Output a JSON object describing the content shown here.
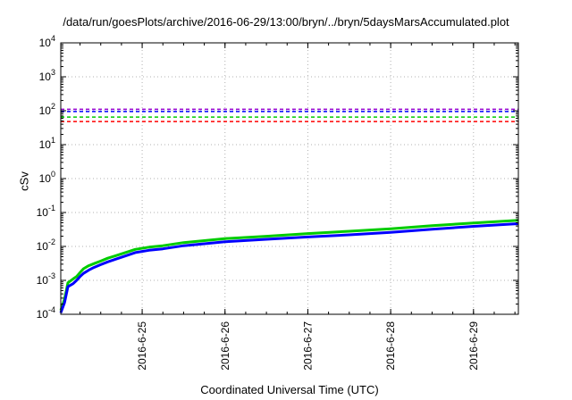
{
  "chart_data": {
    "type": "line",
    "title": "/data/run/goesPlots/archive/2016-06-29/13:00/bryn/../bryn/5daysMarsAccumulated.plot",
    "xlabel": "Coordinated Universal Time (UTC)",
    "ylabel": "cSv",
    "x_ticks": [
      "2016-6-25",
      "2016-6-26",
      "2016-6-27",
      "2016-6-28",
      "2016-6-29"
    ],
    "y_scale": "log",
    "ylim": [
      0.0001,
      10000
    ],
    "y_ticks": [
      {
        "base": "10",
        "exp": "-4"
      },
      {
        "base": "10",
        "exp": "-3"
      },
      {
        "base": "10",
        "exp": "-2"
      },
      {
        "base": "10",
        "exp": "-1"
      },
      {
        "base": "10",
        "exp": "0"
      },
      {
        "base": "10",
        "exp": "1"
      },
      {
        "base": "10",
        "exp": "2"
      },
      {
        "base": "10",
        "exp": "3"
      },
      {
        "base": "10",
        "exp": "4"
      }
    ],
    "xlim": [
      "2016-06-24T00:25",
      "2016-06-29T13:00"
    ],
    "grid": true,
    "legend": "none",
    "threshold_lines": [
      {
        "y": 110,
        "color": "#9400d3",
        "style": "dashed"
      },
      {
        "y": 95,
        "color": "#0000ff",
        "style": "dashed"
      },
      {
        "y": 65,
        "color": "#00cc00",
        "style": "dashed"
      },
      {
        "y": 48,
        "color": "#ff0000",
        "style": "dashed"
      }
    ],
    "series": [
      {
        "color": "#00cc00",
        "x": [
          "2016-06-24T00:25",
          "2016-06-24T01:30",
          "2016-06-24T02:30",
          "2016-06-24T04:00",
          "2016-06-24T05:00",
          "2016-06-24T06:00",
          "2016-06-24T07:00",
          "2016-06-24T08:30",
          "2016-06-24T10:00",
          "2016-06-24T12:00",
          "2016-06-24T14:00",
          "2016-06-24T16:00",
          "2016-06-24T19:00",
          "2016-06-24T22:00",
          "2016-06-25T02:00",
          "2016-06-25T06:00",
          "2016-06-25T12:00",
          "2016-06-26T00:00",
          "2016-06-26T12:00",
          "2016-06-27T00:00",
          "2016-06-27T12:00",
          "2016-06-28T00:00",
          "2016-06-28T12:00",
          "2016-06-29T00:00",
          "2016-06-29T13:00"
        ],
        "y": [
          0.00013,
          0.00028,
          0.00085,
          0.0011,
          0.0013,
          0.0017,
          0.0022,
          0.0027,
          0.0031,
          0.0037,
          0.0045,
          0.0052,
          0.0065,
          0.0082,
          0.0095,
          0.0105,
          0.013,
          0.017,
          0.02,
          0.024,
          0.028,
          0.033,
          0.041,
          0.049,
          0.059
        ]
      },
      {
        "color": "#0000ff",
        "x": [
          "2016-06-24T00:25",
          "2016-06-24T01:30",
          "2016-06-24T02:30",
          "2016-06-24T04:00",
          "2016-06-24T05:00",
          "2016-06-24T06:00",
          "2016-06-24T07:00",
          "2016-06-24T08:30",
          "2016-06-24T10:00",
          "2016-06-24T12:00",
          "2016-06-24T14:00",
          "2016-06-24T16:00",
          "2016-06-24T19:00",
          "2016-06-24T22:00",
          "2016-06-25T02:00",
          "2016-06-25T06:00",
          "2016-06-25T12:00",
          "2016-06-26T00:00",
          "2016-06-26T12:00",
          "2016-06-27T00:00",
          "2016-06-27T12:00",
          "2016-06-28T00:00",
          "2016-06-28T12:00",
          "2016-06-29T00:00",
          "2016-06-29T13:00"
        ],
        "y": [
          0.00011,
          0.00022,
          0.00065,
          0.0008,
          0.001,
          0.0013,
          0.0016,
          0.002,
          0.0024,
          0.0029,
          0.0035,
          0.0041,
          0.0052,
          0.0066,
          0.0077,
          0.0085,
          0.0105,
          0.0137,
          0.0162,
          0.019,
          0.022,
          0.026,
          0.032,
          0.039,
          0.047
        ]
      }
    ]
  }
}
